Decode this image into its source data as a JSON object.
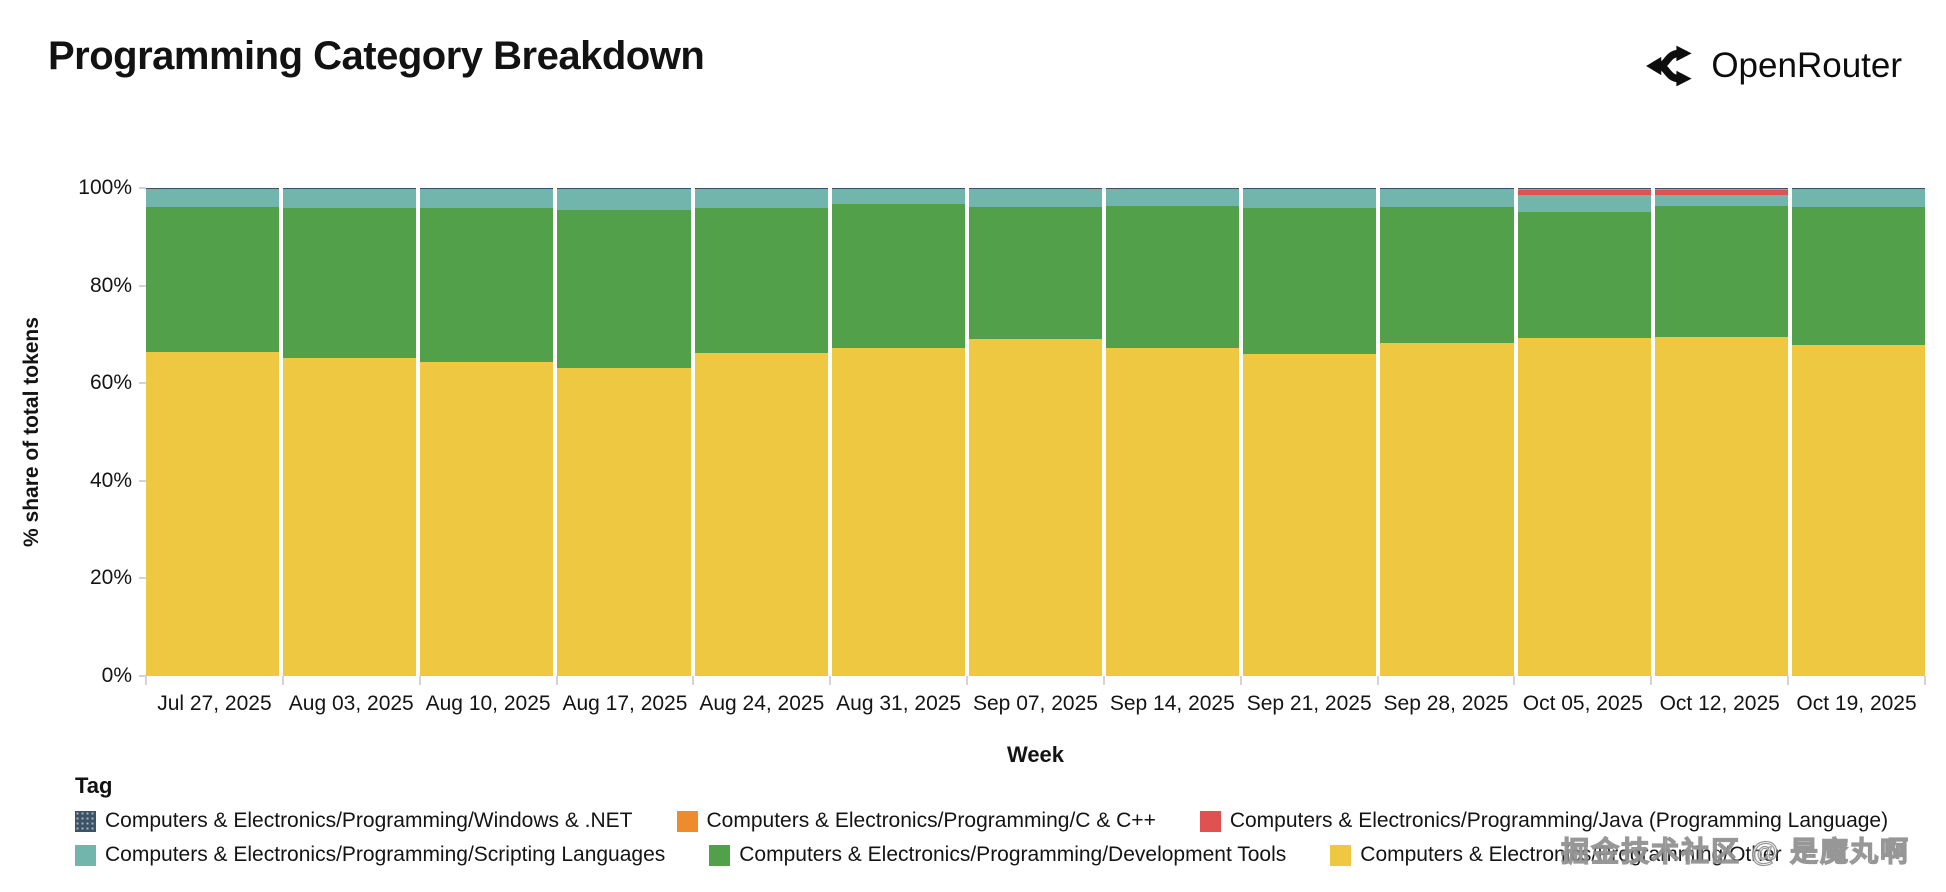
{
  "header": {
    "title": "Programming Category Breakdown",
    "brand": "OpenRouter"
  },
  "chart_data": {
    "type": "bar",
    "subtype": "stacked-100-percent",
    "title": "Programming Category Breakdown",
    "xlabel": "Week",
    "ylabel": "% share of total tokens",
    "ylim": [
      0,
      100
    ],
    "grid": false,
    "legend_position": "bottom-left",
    "ytick_values": [
      0,
      20,
      40,
      60,
      80,
      100
    ],
    "ytick_labels": [
      "0%",
      "20%",
      "40%",
      "60%",
      "80%",
      "100%"
    ],
    "categories": [
      "Jul 27, 2025",
      "Aug 03, 2025",
      "Aug 10, 2025",
      "Aug 17, 2025",
      "Aug 24, 2025",
      "Aug 31, 2025",
      "Sep 07, 2025",
      "Sep 14, 2025",
      "Sep 21, 2025",
      "Sep 28, 2025",
      "Oct 05, 2025",
      "Oct 12, 2025",
      "Oct 19, 2025"
    ],
    "stack_order_note": "series listed bottom-to-top of the stack",
    "series": [
      {
        "key": "other",
        "name": "Computers & Electronics/Programming/Other",
        "color": "#edc840",
        "values": [
          66.3,
          65.1,
          64.3,
          63.2,
          66.2,
          67.2,
          69.1,
          67.2,
          65.9,
          68.2,
          69.3,
          69.4,
          67.9
        ]
      },
      {
        "key": "development_tools",
        "name": "Computers & Electronics/Programming/Development Tools",
        "color": "#52a14a",
        "values": [
          29.8,
          30.8,
          31.6,
          32.2,
          29.7,
          29.5,
          27.0,
          29.2,
          30.0,
          27.9,
          25.8,
          26.9,
          28.2
        ]
      },
      {
        "key": "scripting_languages",
        "name": "Computers & Electronics/Programming/Scripting Languages",
        "color": "#72b5ac",
        "values": [
          3.4,
          3.6,
          3.6,
          4.1,
          3.6,
          2.8,
          3.4,
          3.1,
          3.6,
          3.4,
          3.4,
          2.3,
          3.4
        ]
      },
      {
        "key": "java",
        "name": "Computers & Electronics/Programming/Java (Programming Language)",
        "color": "#e05252",
        "values": [
          0,
          0,
          0,
          0,
          0,
          0,
          0,
          0,
          0,
          0,
          1.0,
          0.9,
          0
        ]
      },
      {
        "key": "c_cpp",
        "name": "Computers & Electronics/Programming/C & C++",
        "color": "#ed8b2e",
        "values": [
          0.35,
          0.35,
          0.35,
          0.35,
          0.35,
          0.35,
          0.35,
          0.35,
          0.35,
          0.35,
          0.35,
          0.35,
          0.35
        ]
      },
      {
        "key": "windows_net",
        "name": "Computers & Electronics/Programming/Windows & .NET",
        "color": "#3e5265",
        "hatched": true,
        "values": [
          0.15,
          0.15,
          0.15,
          0.15,
          0.15,
          0.15,
          0.15,
          0.15,
          0.15,
          0.15,
          0.15,
          0.15,
          0.15
        ]
      }
    ],
    "legend_title": "Tag",
    "legend_rows": [
      [
        "windows_net",
        "c_cpp",
        "java"
      ],
      [
        "scripting_languages",
        "development_tools",
        "other"
      ]
    ]
  },
  "axes": {
    "x_title": "Week",
    "y_title": "% share of total tokens"
  },
  "legend": {
    "title": "Tag"
  },
  "watermark": "掘金技术社区 @ 是魔丸啊"
}
